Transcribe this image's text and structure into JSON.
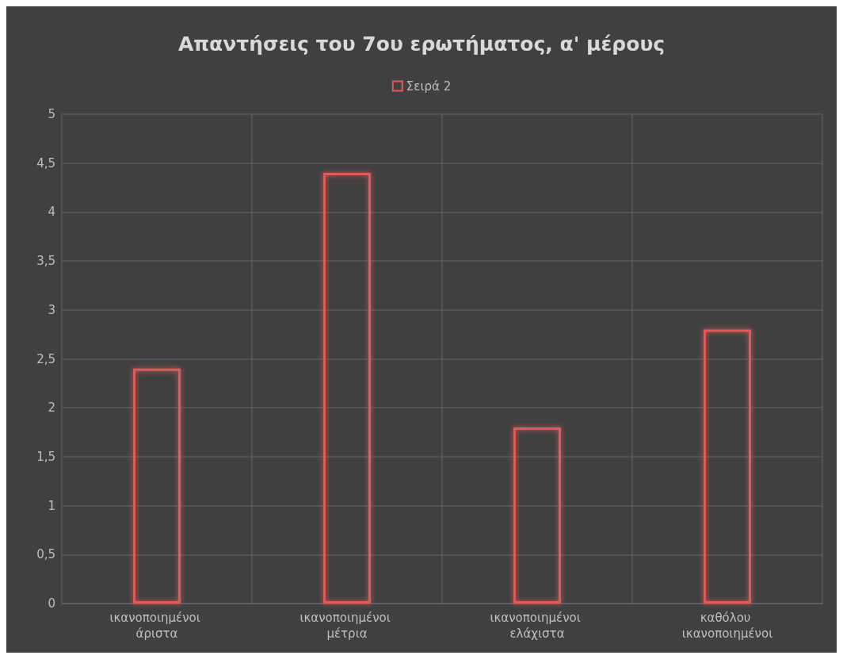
{
  "chart_data": {
    "type": "bar",
    "title": "Απαντήσεις του 7ου ερωτήματος, α' μέρους",
    "categories": [
      "ικανοποιημένοι άριστα",
      "ικανοποιημένοι μέτρια",
      "ικανοποιημένοι ελάχιστα",
      "καθόλου ικανοποιημένοι"
    ],
    "series": [
      {
        "name": "Σειρά 2",
        "color": "#e05a5a",
        "values": [
          2.4,
          4.4,
          1.8,
          2.8
        ]
      }
    ],
    "ylim": [
      0,
      5
    ],
    "yticks": [
      {
        "value": 0,
        "label": "0"
      },
      {
        "value": 0.5,
        "label": "0,5"
      },
      {
        "value": 1,
        "label": "1"
      },
      {
        "value": 1.5,
        "label": "1,5"
      },
      {
        "value": 2,
        "label": "2"
      },
      {
        "value": 2.5,
        "label": "2,5"
      },
      {
        "value": 3,
        "label": "3"
      },
      {
        "value": 3.5,
        "label": "3,5"
      },
      {
        "value": 4,
        "label": "4"
      },
      {
        "value": 4.5,
        "label": "4,5"
      },
      {
        "value": 5,
        "label": "5"
      }
    ],
    "grid": true,
    "legend": "top"
  }
}
